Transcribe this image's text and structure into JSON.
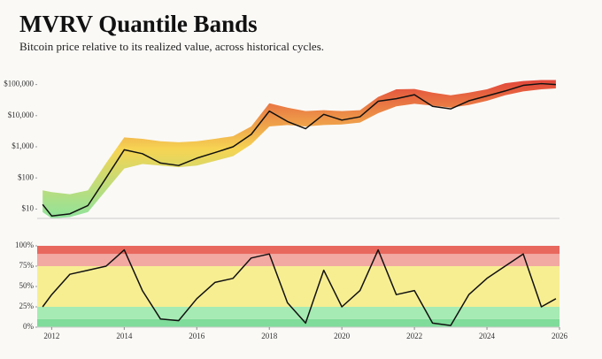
{
  "chart_data": [
    {
      "type": "line",
      "title": "MVRV Quantile Bands",
      "subtitle": "Bitcoin price relative to its realized value, across historical cycles.",
      "log_y": true,
      "x": [
        2011.75,
        2012,
        2012.5,
        2013,
        2013.5,
        2014,
        2014.5,
        2015,
        2015.5,
        2016,
        2016.5,
        2017,
        2017.5,
        2018,
        2018.5,
        2019,
        2019.5,
        2020,
        2020.5,
        2021,
        2021.5,
        2022,
        2022.5,
        2023,
        2023.5,
        2024,
        2024.5,
        2025,
        2025.5,
        2025.9
      ],
      "xlim": [
        2011.6,
        2026
      ],
      "ylim": [
        5,
        200000
      ],
      "yticks": [
        {
          "value": 10,
          "label": "$10"
        },
        {
          "value": 100,
          "label": "$100"
        },
        {
          "value": 1000,
          "label": "$1,000"
        },
        {
          "value": 10000,
          "label": "$10,000"
        },
        {
          "value": 100000,
          "label": "$100,000"
        }
      ],
      "band": {
        "upper": [
          40,
          35,
          30,
          40,
          300,
          2000,
          1800,
          1500,
          1400,
          1500,
          1800,
          2200,
          4500,
          25000,
          18000,
          14000,
          15000,
          14000,
          15000,
          40000,
          70000,
          72000,
          55000,
          45000,
          55000,
          70000,
          110000,
          130000,
          140000,
          140000
        ],
        "lower": [
          8,
          5,
          5.5,
          8,
          40,
          200,
          280,
          250,
          220,
          250,
          350,
          500,
          1200,
          4500,
          5000,
          4500,
          5000,
          5200,
          6000,
          12000,
          20000,
          24000,
          21000,
          18000,
          22000,
          30000,
          45000,
          60000,
          70000,
          75000
        ],
        "colors": [
          "#e2463b",
          "#f6d453",
          "#8fe39c"
        ]
      },
      "series": [
        {
          "color": "#111111",
          "values": [
            14,
            6,
            7,
            13,
            100,
            800,
            600,
            300,
            250,
            430,
            650,
            1000,
            2500,
            14000,
            6500,
            3800,
            11000,
            7200,
            9200,
            29000,
            35000,
            47000,
            20000,
            16500,
            30000,
            43000,
            62000,
            94000,
            107000,
            100000
          ]
        }
      ]
    },
    {
      "type": "line",
      "x": [
        2011.75,
        2012,
        2012.5,
        2013,
        2013.5,
        2014,
        2014.5,
        2015,
        2015.5,
        2016,
        2016.5,
        2017,
        2017.5,
        2018,
        2018.5,
        2019,
        2019.5,
        2020,
        2020.5,
        2021,
        2021.5,
        2022,
        2022.5,
        2023,
        2023.5,
        2024,
        2024.5,
        2025,
        2025.5,
        2025.9
      ],
      "xlim": [
        2011.6,
        2026
      ],
      "xticks": [
        2012,
        2014,
        2016,
        2018,
        2020,
        2022,
        2024,
        2026
      ],
      "ylim": [
        0,
        100
      ],
      "yticks": [
        {
          "value": 0,
          "label": "0%"
        },
        {
          "value": 25,
          "label": "25%"
        },
        {
          "value": 50,
          "label": "50%"
        },
        {
          "value": 75,
          "label": "75%"
        },
        {
          "value": 100,
          "label": "100%"
        }
      ],
      "zones": [
        {
          "from": 0,
          "to": 10,
          "color": "#7fdc9a"
        },
        {
          "from": 10,
          "to": 25,
          "color": "#a6ebb3"
        },
        {
          "from": 25,
          "to": 75,
          "color": "#f7ee92"
        },
        {
          "from": 75,
          "to": 90,
          "color": "#f2a9a2"
        },
        {
          "from": 90,
          "to": 100,
          "color": "#e8685e"
        }
      ],
      "series": [
        {
          "color": "#111111",
          "values": [
            25,
            40,
            65,
            70,
            75,
            95,
            45,
            10,
            8,
            35,
            55,
            60,
            85,
            90,
            30,
            5,
            70,
            25,
            45,
            95,
            40,
            45,
            5,
            2,
            40,
            60,
            75,
            90,
            25,
            35
          ]
        }
      ]
    }
  ]
}
